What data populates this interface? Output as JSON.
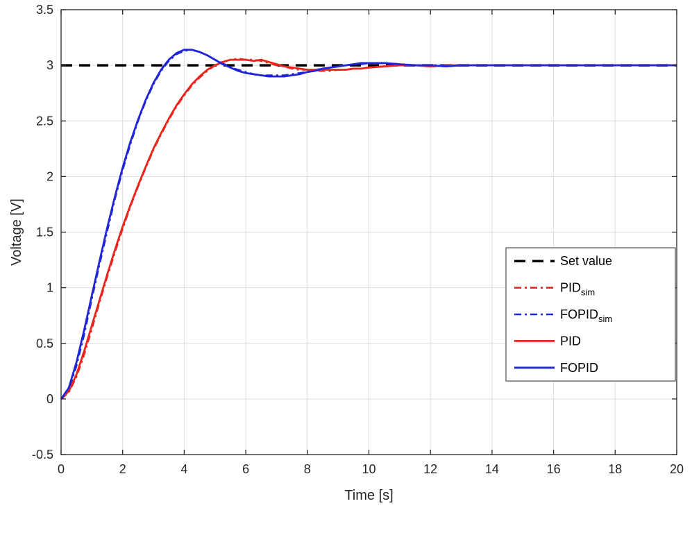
{
  "colors": {
    "background": "#ffffff",
    "axis": "#262626",
    "grid": "#dcdcdc",
    "legend_border": "#4d4d4d",
    "red": "#e8261d",
    "blue": "#2026d8",
    "black": "#000000"
  },
  "chart_data": {
    "type": "line",
    "title": "",
    "xlabel": "Time [s]",
    "ylabel": "Voltage [V]",
    "xlim": [
      0,
      20
    ],
    "ylim": [
      -0.5,
      3.5
    ],
    "x_ticks": [
      0,
      2,
      4,
      6,
      8,
      10,
      12,
      14,
      16,
      18,
      20
    ],
    "y_ticks": [
      -0.5,
      0,
      0.5,
      1,
      1.5,
      2,
      2.5,
      3,
      3.5
    ],
    "grid": true,
    "legend_position": "inside-right-middle",
    "set_value": 3,
    "x_common": [
      0,
      0.25,
      0.5,
      0.75,
      1,
      1.25,
      1.5,
      1.75,
      2,
      2.25,
      2.5,
      2.75,
      3,
      3.25,
      3.5,
      3.75,
      4,
      4.25,
      4.5,
      4.75,
      5,
      5.25,
      5.5,
      5.75,
      6,
      6.25,
      6.5,
      6.75,
      7,
      7.25,
      7.5,
      7.75,
      8,
      8.25,
      8.5,
      8.75,
      9,
      9.25,
      9.5,
      9.75,
      10,
      10.5,
      11,
      11.5,
      12,
      12.5,
      13,
      14,
      15,
      16,
      17,
      18,
      19,
      20
    ],
    "series": [
      {
        "name": "set_value",
        "label": "Set value",
        "sub": "",
        "color_key": "black",
        "style": "dashed",
        "width": 3.5,
        "x": [
          0,
          20
        ],
        "y": [
          3,
          3
        ]
      },
      {
        "name": "pid_sim",
        "label": "PID",
        "sub": "sim",
        "color_key": "red",
        "style": "dashdot",
        "width": 2.6,
        "use_common_x": true,
        "y": [
          0.0,
          0.06,
          0.2,
          0.4,
          0.63,
          0.87,
          1.1,
          1.32,
          1.53,
          1.73,
          1.91,
          2.08,
          2.24,
          2.38,
          2.51,
          2.63,
          2.73,
          2.82,
          2.89,
          2.95,
          3.0,
          3.03,
          3.05,
          3.06,
          3.05,
          3.05,
          3.04,
          3.02,
          3.0,
          2.99,
          2.97,
          2.96,
          2.96,
          2.95,
          2.95,
          2.95,
          2.96,
          2.96,
          2.97,
          2.97,
          2.98,
          2.99,
          3.0,
          3.0,
          3.0,
          3.0,
          3.0,
          3.0,
          3.0,
          3.0,
          3.0,
          3.0,
          3.0,
          3.0
        ]
      },
      {
        "name": "fopid_sim",
        "label": "FOPID",
        "sub": "sim",
        "color_key": "blue",
        "style": "dashdot",
        "width": 2.6,
        "use_common_x": true,
        "y": [
          0.0,
          0.08,
          0.3,
          0.58,
          0.9,
          1.21,
          1.51,
          1.8,
          2.06,
          2.29,
          2.5,
          2.68,
          2.83,
          2.95,
          3.04,
          3.1,
          3.13,
          3.14,
          3.12,
          3.09,
          3.05,
          3.02,
          2.98,
          2.96,
          2.94,
          2.92,
          2.91,
          2.91,
          2.91,
          2.91,
          2.92,
          2.93,
          2.94,
          2.96,
          2.97,
          2.98,
          2.99,
          3.0,
          3.01,
          3.01,
          3.02,
          3.02,
          3.01,
          3.0,
          3.0,
          3.0,
          3.0,
          3.0,
          3.0,
          3.0,
          3.0,
          3.0,
          3.0,
          3.0
        ]
      },
      {
        "name": "pid",
        "label": "PID",
        "sub": "",
        "color_key": "red",
        "style": "solid",
        "width": 2.8,
        "use_common_x": true,
        "y": [
          0.0,
          0.07,
          0.22,
          0.43,
          0.66,
          0.89,
          1.12,
          1.34,
          1.55,
          1.74,
          1.92,
          2.09,
          2.25,
          2.39,
          2.52,
          2.64,
          2.74,
          2.83,
          2.9,
          2.96,
          3.0,
          3.03,
          3.05,
          3.05,
          3.05,
          3.04,
          3.05,
          3.03,
          3.01,
          2.99,
          2.98,
          2.97,
          2.96,
          2.96,
          2.96,
          2.96,
          2.96,
          2.96,
          2.97,
          2.97,
          2.98,
          2.99,
          3.0,
          3.0,
          2.99,
          3.0,
          3.0,
          3.0,
          3.0,
          3.0,
          3.0,
          3.0,
          3.0,
          3.0
        ]
      },
      {
        "name": "fopid",
        "label": "FOPID",
        "sub": "",
        "color_key": "blue",
        "style": "solid",
        "width": 2.8,
        "use_common_x": true,
        "y": [
          0.0,
          0.1,
          0.33,
          0.62,
          0.93,
          1.24,
          1.54,
          1.82,
          2.08,
          2.31,
          2.51,
          2.69,
          2.84,
          2.96,
          3.05,
          3.11,
          3.14,
          3.14,
          3.12,
          3.09,
          3.05,
          3.01,
          2.98,
          2.95,
          2.93,
          2.92,
          2.91,
          2.9,
          2.9,
          2.9,
          2.91,
          2.92,
          2.94,
          2.95,
          2.97,
          2.98,
          2.99,
          3.0,
          3.01,
          3.02,
          3.02,
          3.02,
          3.01,
          3.0,
          3.0,
          2.99,
          3.0,
          3.0,
          3.0,
          3.0,
          3.0,
          3.0,
          3.0,
          3.0
        ]
      }
    ],
    "legend_entries": [
      "set_value",
      "pid_sim",
      "fopid_sim",
      "pid",
      "fopid"
    ]
  }
}
